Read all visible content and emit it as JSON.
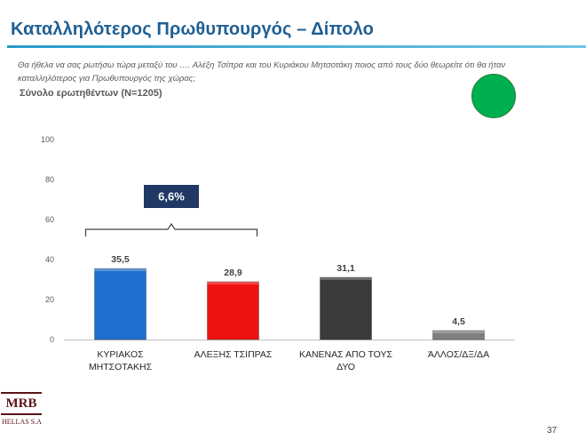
{
  "header": {
    "title": "Καταλληλότερος Πρωθυπουργός – Δίπολο",
    "question": "Θα ήθελα να σας ρωτήσω τώρα μεταξύ του …. Αλέξη Τσίπρα και του Κυριάκου Μητσοτάκη ποιος από τους δύο θεωρείτε ότι θα ήταν καταλληλότερος για Πρωθυπουργός της χώρας;",
    "base": "Σύνολο ερωτηθέντων (N=1205)"
  },
  "indicator": {
    "color": "#00b050"
  },
  "chart_data": {
    "type": "bar",
    "categories": [
      [
        "ΚΥΡΙΑΚΟΣ",
        "ΜΗΤΣΟΤΑΚΗΣ"
      ],
      [
        "ΑΛΕΞΗΣ ΤΣΙΠΡΑΣ"
      ],
      [
        "ΚΑΝΕΝΑΣ ΑΠΟ ΤΟΥΣ",
        "ΔΥΟ"
      ],
      [
        "ΆΛΛΟΣ/ΔΞ/ΔΑ"
      ]
    ],
    "values": [
      35.5,
      28.9,
      31.1,
      4.5
    ],
    "value_labels": [
      "35,5",
      "28,9",
      "31,1",
      "4,5"
    ],
    "colors": [
      "#1f6fd1",
      "#ee1111",
      "#3a3a3a",
      "#7f7f7f"
    ],
    "ylim": [
      0,
      100
    ],
    "yticks": [
      0,
      20,
      40,
      60,
      80,
      100
    ],
    "grid": false,
    "annotation": {
      "text": "6,6%",
      "between": [
        0,
        1
      ],
      "color": "#1f3864"
    }
  },
  "footer": {
    "logo": "MRB",
    "logo_sub": "HELLAS S.A",
    "page_number": "37"
  }
}
